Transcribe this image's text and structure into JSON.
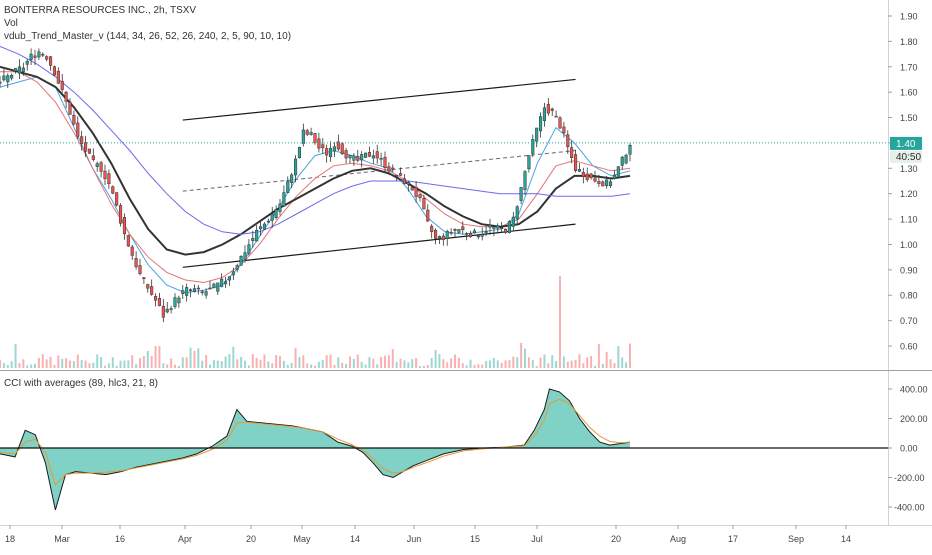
{
  "header": {
    "title": "BONTERRA RESOURCES INC., 2h, TSXV",
    "vol_label": "Vol",
    "indicator_label": "vdub_Trend_Master_v (144, 34, 26, 52, 26, 240, 2, 5, 90, 10, 10)",
    "cci_label": "CCI with averages (89, hlc3, 21, 8)"
  },
  "price_axis": {
    "ticks": [
      "1.90",
      "1.80",
      "1.70",
      "1.60",
      "1.50",
      "1.40",
      "1.30",
      "1.20",
      "1.10",
      "1.00",
      "0.90",
      "0.80",
      "0.70",
      "0.60"
    ],
    "last_price": "1.40",
    "countdown": "40:50"
  },
  "cci_axis": {
    "ticks": [
      "400.00",
      "200.00",
      "0.00",
      "-200.00",
      "-400.00"
    ]
  },
  "time_axis": {
    "ticks": [
      "18",
      "Mar",
      "16",
      "Apr",
      "20",
      "May",
      "14",
      "Jun",
      "15",
      "Jul",
      "20",
      "Aug",
      "17",
      "Sep",
      "14"
    ]
  },
  "colors": {
    "up": "#26a69a",
    "down": "#ef5350",
    "candle_body": "#333333",
    "ma_fast": "#4aa3df",
    "ma_mid": "#e57373",
    "ma_slow": "#333333",
    "ma_long": "#6a6af0",
    "cci_fill": "#5fc7b6",
    "cci_line": "#1a1a1a",
    "cci_avg": "#e39a3b",
    "last_price_bg": "#26a69a"
  },
  "chart_data": [
    {
      "type": "candlestick",
      "title": "BONTERRA RESOURCES INC., 2h, TSXV",
      "ylim": [
        0.55,
        1.95
      ],
      "price_path": [
        [
          0,
          1.64
        ],
        [
          2,
          1.66
        ],
        [
          4,
          1.68
        ],
        [
          6,
          1.7
        ],
        [
          8,
          1.74
        ],
        [
          10,
          1.76
        ],
        [
          12,
          1.74
        ],
        [
          14,
          1.68
        ],
        [
          16,
          1.6
        ],
        [
          18,
          1.52
        ],
        [
          20,
          1.42
        ],
        [
          22,
          1.37
        ],
        [
          24,
          1.32
        ],
        [
          26,
          1.3
        ],
        [
          28,
          1.24
        ],
        [
          30,
          1.15
        ],
        [
          32,
          1.04
        ],
        [
          34,
          0.96
        ],
        [
          36,
          0.88
        ],
        [
          38,
          0.83
        ],
        [
          40,
          0.78
        ],
        [
          42,
          0.72
        ],
        [
          44,
          0.76
        ],
        [
          46,
          0.8
        ],
        [
          48,
          0.82
        ],
        [
          50,
          0.82
        ],
        [
          52,
          0.81
        ],
        [
          54,
          0.82
        ],
        [
          56,
          0.84
        ],
        [
          58,
          0.86
        ],
        [
          60,
          0.9
        ],
        [
          62,
          0.95
        ],
        [
          64,
          1.0
        ],
        [
          66,
          1.05
        ],
        [
          68,
          1.08
        ],
        [
          70,
          1.12
        ],
        [
          72,
          1.16
        ],
        [
          74,
          1.24
        ],
        [
          76,
          1.33
        ],
        [
          78,
          1.44
        ],
        [
          80,
          1.43
        ],
        [
          82,
          1.38
        ],
        [
          84,
          1.36
        ],
        [
          86,
          1.4
        ],
        [
          88,
          1.37
        ],
        [
          90,
          1.34
        ],
        [
          92,
          1.33
        ],
        [
          94,
          1.35
        ],
        [
          96,
          1.36
        ],
        [
          98,
          1.33
        ],
        [
          100,
          1.3
        ],
        [
          102,
          1.27
        ],
        [
          104,
          1.25
        ],
        [
          106,
          1.22
        ],
        [
          108,
          1.17
        ],
        [
          110,
          1.08
        ],
        [
          112,
          1.02
        ],
        [
          114,
          1.03
        ],
        [
          116,
          1.05
        ],
        [
          118,
          1.06
        ],
        [
          120,
          1.05
        ],
        [
          122,
          1.04
        ],
        [
          124,
          1.05
        ],
        [
          126,
          1.07
        ],
        [
          128,
          1.06
        ],
        [
          130,
          1.06
        ],
        [
          132,
          1.1
        ],
        [
          134,
          1.22
        ],
        [
          136,
          1.35
        ],
        [
          138,
          1.45
        ],
        [
          140,
          1.54
        ],
        [
          142,
          1.52
        ],
        [
          144,
          1.47
        ],
        [
          146,
          1.38
        ],
        [
          148,
          1.3
        ],
        [
          150,
          1.28
        ],
        [
          152,
          1.26
        ],
        [
          154,
          1.25
        ],
        [
          156,
          1.24
        ],
        [
          158,
          1.27
        ],
        [
          160,
          1.33
        ],
        [
          162,
          1.4
        ]
      ],
      "volume_spike": {
        "x": 144,
        "value_note": "largest volume bar"
      },
      "moving_averages": [
        {
          "name": "fast",
          "y": [
            1.62,
            1.64,
            1.66,
            1.62,
            1.46,
            1.3,
            1.18,
            1.04,
            0.92,
            0.84,
            0.81,
            0.82,
            0.84,
            0.92,
            1.03,
            1.14,
            1.26,
            1.35,
            1.37,
            1.35,
            1.32,
            1.3,
            1.22,
            1.11,
            1.05,
            1.04,
            1.05,
            1.06,
            1.12,
            1.32,
            1.46,
            1.4,
            1.31,
            1.27,
            1.29
          ]
        },
        {
          "name": "mid",
          "y": [
            1.68,
            1.68,
            1.64,
            1.56,
            1.44,
            1.3,
            1.16,
            1.04,
            0.95,
            0.89,
            0.86,
            0.85,
            0.87,
            0.92,
            1.0,
            1.1,
            1.19,
            1.26,
            1.31,
            1.32,
            1.31,
            1.29,
            1.25,
            1.18,
            1.12,
            1.08,
            1.07,
            1.07,
            1.1,
            1.2,
            1.31,
            1.33,
            1.31,
            1.29,
            1.3
          ]
        },
        {
          "name": "slow",
          "y": [
            1.7,
            1.68,
            1.66,
            1.62,
            1.54,
            1.44,
            1.32,
            1.18,
            1.06,
            0.98,
            0.96,
            0.97,
            1.0,
            1.04,
            1.09,
            1.14,
            1.18,
            1.22,
            1.26,
            1.29,
            1.3,
            1.28,
            1.24,
            1.2,
            1.15,
            1.11,
            1.08,
            1.07,
            1.08,
            1.13,
            1.22,
            1.27,
            1.27,
            1.26,
            1.27
          ]
        },
        {
          "name": "long",
          "y": [
            1.78,
            1.75,
            1.71,
            1.66,
            1.6,
            1.53,
            1.45,
            1.37,
            1.28,
            1.2,
            1.13,
            1.08,
            1.05,
            1.04,
            1.05,
            1.08,
            1.12,
            1.16,
            1.2,
            1.23,
            1.25,
            1.25,
            1.25,
            1.24,
            1.23,
            1.22,
            1.21,
            1.2,
            1.2,
            1.2,
            1.19,
            1.19,
            1.19,
            1.19,
            1.2
          ]
        }
      ],
      "channel": {
        "upper": [
          [
            47,
            1.49
          ],
          [
            148,
            1.65
          ]
        ],
        "lower": [
          [
            47,
            0.91
          ],
          [
            148,
            1.08
          ]
        ],
        "midline": [
          [
            47,
            1.21
          ],
          [
            148,
            1.37
          ]
        ]
      }
    },
    {
      "type": "area",
      "title": "CCI with averages (89, hlc3, 21, 8)",
      "ylim": [
        -480,
        480
      ],
      "cci": [
        [
          0,
          -40
        ],
        [
          3,
          -60
        ],
        [
          5,
          120
        ],
        [
          7,
          90
        ],
        [
          9,
          -100
        ],
        [
          11,
          -420
        ],
        [
          13,
          -180
        ],
        [
          15,
          -160
        ],
        [
          18,
          -170
        ],
        [
          21,
          -180
        ],
        [
          24,
          -160
        ],
        [
          27,
          -130
        ],
        [
          30,
          -110
        ],
        [
          33,
          -90
        ],
        [
          36,
          -70
        ],
        [
          39,
          -40
        ],
        [
          42,
          10
        ],
        [
          45,
          80
        ],
        [
          47,
          260
        ],
        [
          49,
          180
        ],
        [
          52,
          170
        ],
        [
          55,
          160
        ],
        [
          58,
          150
        ],
        [
          61,
          130
        ],
        [
          64,
          110
        ],
        [
          67,
          40
        ],
        [
          70,
          10
        ],
        [
          72,
          -30
        ],
        [
          74,
          -100
        ],
        [
          76,
          -180
        ],
        [
          78,
          -200
        ],
        [
          80,
          -160
        ],
        [
          82,
          -120
        ],
        [
          85,
          -80
        ],
        [
          88,
          -40
        ],
        [
          92,
          -10
        ],
        [
          96,
          0
        ],
        [
          100,
          5
        ],
        [
          104,
          20
        ],
        [
          106,
          120
        ],
        [
          108,
          260
        ],
        [
          109,
          400
        ],
        [
          111,
          380
        ],
        [
          113,
          320
        ],
        [
          115,
          200
        ],
        [
          117,
          110
        ],
        [
          119,
          40
        ],
        [
          121,
          20
        ],
        [
          123,
          30
        ],
        [
          125,
          40
        ]
      ],
      "cci_avg": [
        [
          0,
          -30
        ],
        [
          3,
          -40
        ],
        [
          5,
          40
        ],
        [
          7,
          60
        ],
        [
          9,
          -30
        ],
        [
          11,
          -250
        ],
        [
          13,
          -180
        ],
        [
          15,
          -170
        ],
        [
          18,
          -170
        ],
        [
          21,
          -165
        ],
        [
          24,
          -155
        ],
        [
          27,
          -135
        ],
        [
          30,
          -115
        ],
        [
          33,
          -95
        ],
        [
          36,
          -75
        ],
        [
          39,
          -50
        ],
        [
          42,
          -10
        ],
        [
          45,
          50
        ],
        [
          47,
          170
        ],
        [
          49,
          175
        ],
        [
          52,
          165
        ],
        [
          55,
          155
        ],
        [
          58,
          145
        ],
        [
          61,
          130
        ],
        [
          64,
          110
        ],
        [
          67,
          60
        ],
        [
          70,
          20
        ],
        [
          72,
          -15
        ],
        [
          74,
          -70
        ],
        [
          76,
          -140
        ],
        [
          78,
          -170
        ],
        [
          80,
          -160
        ],
        [
          82,
          -130
        ],
        [
          85,
          -95
        ],
        [
          88,
          -55
        ],
        [
          92,
          -20
        ],
        [
          96,
          -5
        ],
        [
          100,
          5
        ],
        [
          104,
          15
        ],
        [
          106,
          80
        ],
        [
          108,
          190
        ],
        [
          109,
          300
        ],
        [
          111,
          330
        ],
        [
          113,
          300
        ],
        [
          115,
          220
        ],
        [
          117,
          140
        ],
        [
          119,
          80
        ],
        [
          121,
          45
        ],
        [
          123,
          35
        ],
        [
          125,
          40
        ]
      ]
    }
  ]
}
